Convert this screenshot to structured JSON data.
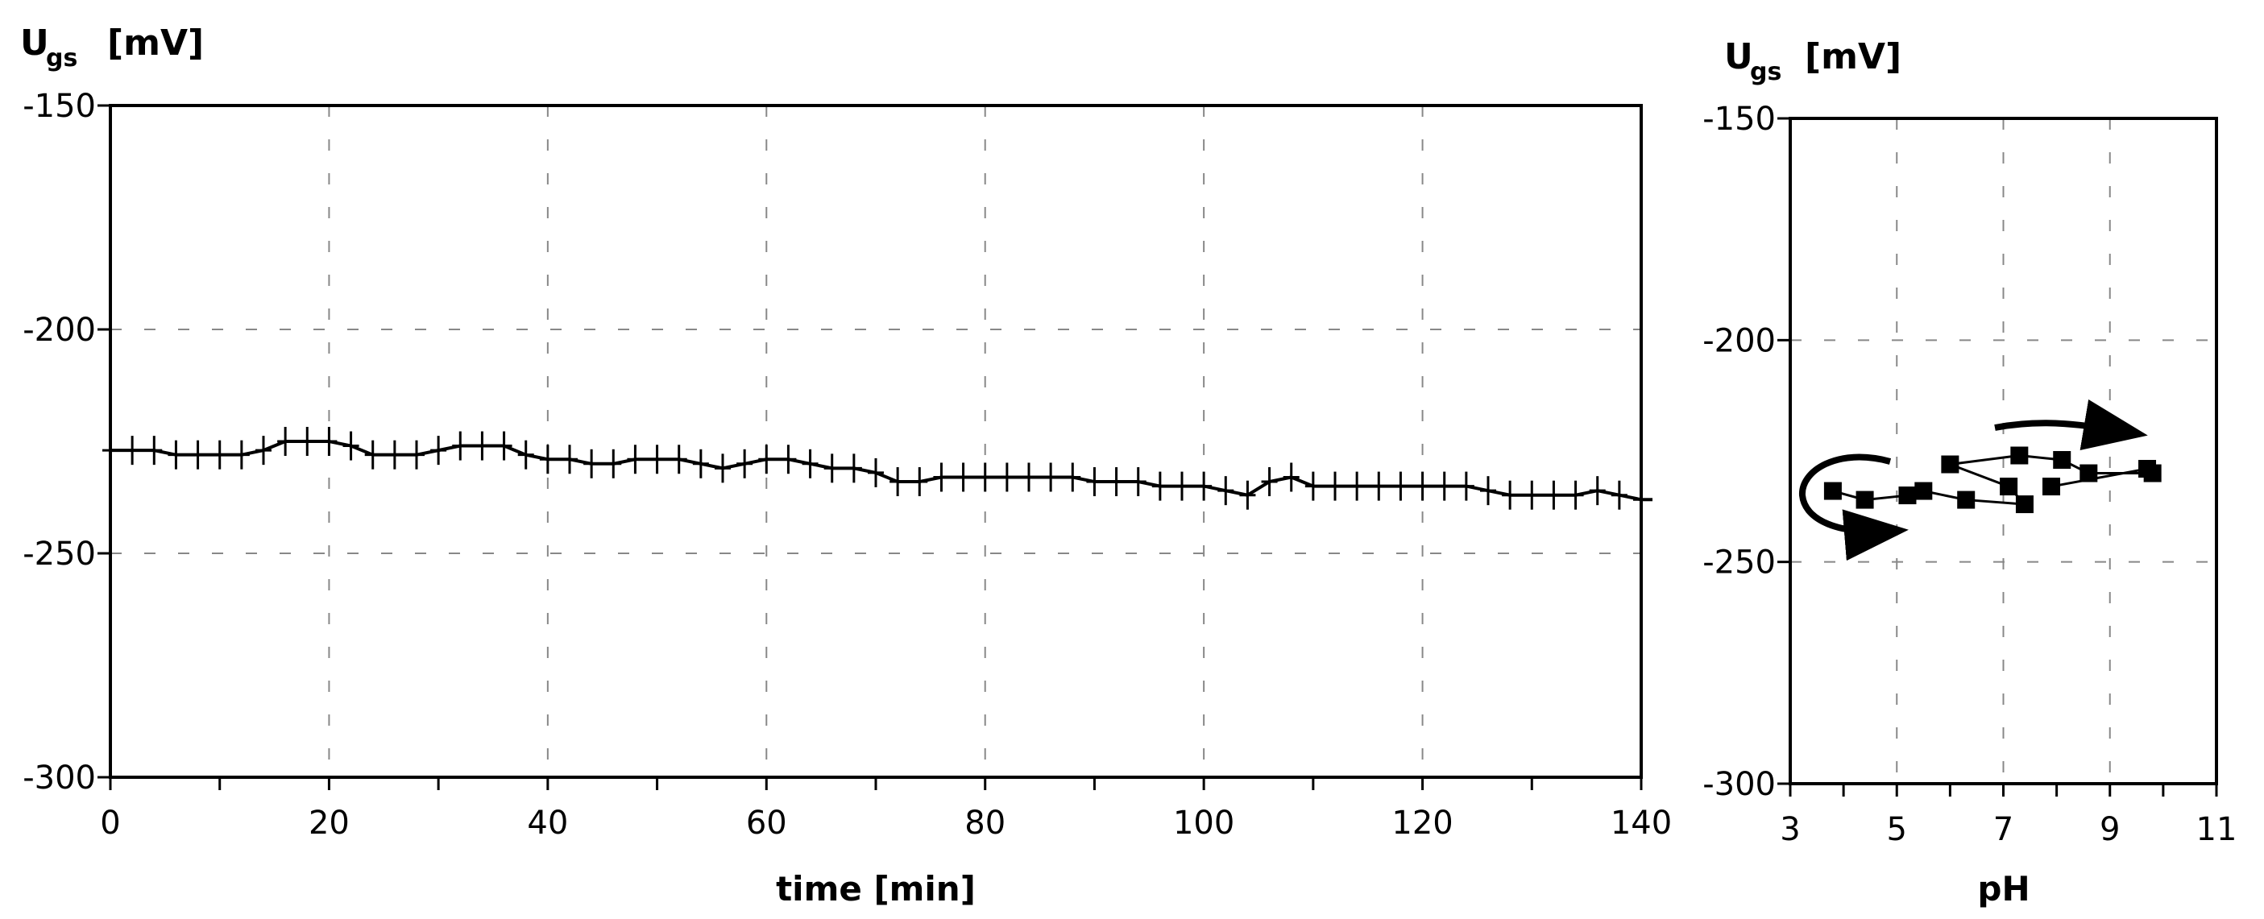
{
  "chart_data": [
    {
      "type": "line",
      "xlabel": "time [min]",
      "ylabel": {
        "symbol": "U",
        "subscript": "gs",
        "unit": "[mV]"
      },
      "xlim": [
        0,
        140
      ],
      "ylim": [
        -300,
        -150
      ],
      "xticks": [
        0,
        20,
        40,
        60,
        80,
        100,
        120,
        140
      ],
      "xtick_labels": [
        "0",
        "20",
        "40",
        "60",
        "80",
        "100",
        "120",
        "140"
      ],
      "yticks": [
        -150,
        -200,
        -250,
        -300
      ],
      "ytick_labels": [
        "-150",
        "-200",
        "-250",
        "-300"
      ],
      "grid": true,
      "marker": "plus",
      "series": [
        {
          "x": [
            0,
            2,
            4,
            6,
            8,
            10,
            12,
            14,
            16,
            18,
            20,
            22,
            24,
            26,
            28,
            30,
            32,
            34,
            36,
            38,
            40,
            42,
            44,
            46,
            48,
            50,
            52,
            54,
            56,
            58,
            60,
            62,
            64,
            66,
            68,
            70,
            72,
            74,
            76,
            78,
            80,
            82,
            84,
            86,
            88,
            90,
            92,
            94,
            96,
            98,
            100,
            102,
            104,
            106,
            108,
            110,
            112,
            114,
            116,
            118,
            120,
            122,
            124,
            126,
            128,
            130,
            132,
            134,
            136,
            138,
            140
          ],
          "values": [
            -227,
            -227,
            -227,
            -228,
            -228,
            -228,
            -228,
            -227,
            -225,
            -225,
            -225,
            -226,
            -228,
            -228,
            -228,
            -227,
            -226,
            -226,
            -226,
            -228,
            -229,
            -229,
            -230,
            -230,
            -229,
            -229,
            -229,
            -230,
            -231,
            -230,
            -229,
            -229,
            -230,
            -231,
            -231,
            -232,
            -234,
            -234,
            -233,
            -233,
            -233,
            -233,
            -233,
            -233,
            -233,
            -234,
            -234,
            -234,
            -235,
            -235,
            -235,
            -236,
            -237,
            -234,
            -233,
            -235,
            -235,
            -235,
            -235,
            -235,
            -235,
            -235,
            -235,
            -236,
            -237,
            -237,
            -237,
            -237,
            -236,
            -237,
            -238
          ]
        }
      ]
    },
    {
      "type": "scatter",
      "xlabel": "pH",
      "ylabel": {
        "symbol": "U",
        "subscript": "gs",
        "unit": "[mV]"
      },
      "xlim": [
        3,
        11
      ],
      "ylim": [
        -300,
        -150
      ],
      "xticks": [
        3,
        5,
        7,
        9,
        11
      ],
      "xtick_labels": [
        "3",
        "5",
        "7",
        "9",
        "11"
      ],
      "yticks": [
        -150,
        -200,
        -250,
        -300
      ],
      "ytick_labels": [
        "-150",
        "-200",
        "-250",
        "-300"
      ],
      "grid": true,
      "marker": "square",
      "series": [
        {
          "x": [
            3.8,
            4.4,
            5.2,
            5.5,
            6.3,
            7.4,
            7.1,
            6.0,
            7.3,
            8.1,
            8.6,
            9.8,
            9.7,
            7.9
          ],
          "values": [
            -234,
            -236,
            -235,
            -234,
            -236,
            -237,
            -233,
            -228,
            -226,
            -227,
            -230,
            -230,
            -229,
            -233
          ]
        }
      ],
      "annotations": [
        "hysteresis-loop-arrow",
        "upper-right-arrow",
        "lower-left-arrow"
      ]
    }
  ]
}
